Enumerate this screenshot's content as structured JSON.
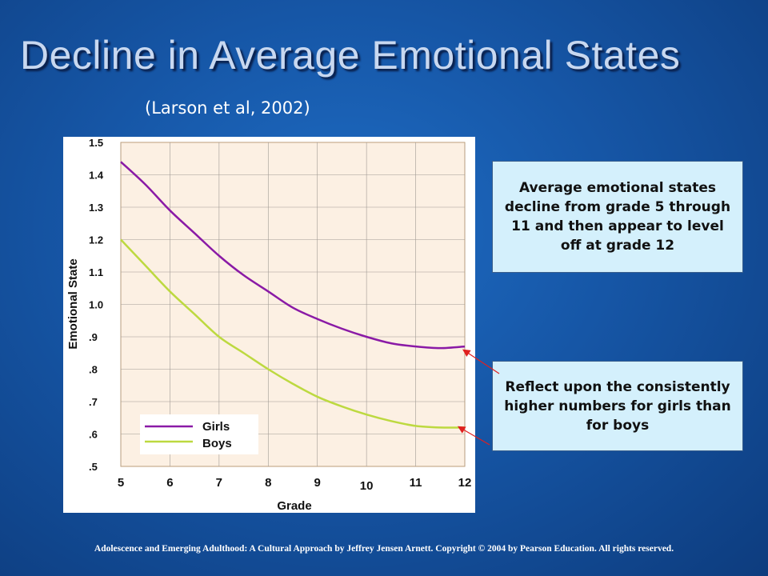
{
  "title": "Decline in Average Emotional States",
  "citation": "(Larson et al, 2002)",
  "callouts": [
    "Average emotional states decline from grade 5 through 11 and then appear to level off at grade 12",
    "Reflect upon the consistently higher numbers for girls than for boys"
  ],
  "footer": "Adolescence and Emerging Adulthood: A Cultural Approach by Jeffrey Jensen Arnett.  Copyright © 2004 by Pearson Education. All rights reserved.",
  "colors": {
    "girls": "#8a1aa6",
    "boys": "#bdd940",
    "plot_bg": "#fcf0e3",
    "grid": "#a09a94",
    "arrow": "#e02020"
  },
  "chart_data": {
    "type": "line",
    "xlabel": "Grade",
    "ylabel": "Emotional State",
    "xlim": [
      5,
      12
    ],
    "ylim": [
      0.5,
      1.5
    ],
    "x_ticks": [
      5,
      6,
      7,
      8,
      9,
      10,
      11,
      12
    ],
    "x_tick_labels": [
      "5",
      "6",
      "7",
      "8",
      "9",
      "10",
      "11",
      "12"
    ],
    "y_ticks": [
      0.5,
      0.6,
      0.7,
      0.8,
      0.9,
      1.0,
      1.1,
      1.2,
      1.3,
      1.4,
      1.5
    ],
    "y_tick_labels": [
      ".5",
      ".6",
      ".7",
      ".8",
      ".9",
      "1.0",
      "1.1",
      "1.2",
      "1.3",
      "1.4",
      "1.5"
    ],
    "grid": true,
    "legend": "bottom-left",
    "series": [
      {
        "name": "Girls",
        "x": [
          5,
          5.5,
          6,
          6.5,
          7,
          7.5,
          8,
          8.5,
          9,
          9.5,
          10,
          10.5,
          11,
          11.5,
          12
        ],
        "values": [
          1.44,
          1.37,
          1.29,
          1.22,
          1.15,
          1.09,
          1.04,
          0.99,
          0.955,
          0.925,
          0.9,
          0.88,
          0.87,
          0.865,
          0.87
        ]
      },
      {
        "name": "Boys",
        "x": [
          5,
          5.5,
          6,
          6.5,
          7,
          7.5,
          8,
          8.5,
          9,
          9.5,
          10,
          10.5,
          11,
          11.5,
          12
        ],
        "values": [
          1.2,
          1.12,
          1.04,
          0.97,
          0.9,
          0.85,
          0.8,
          0.755,
          0.715,
          0.685,
          0.66,
          0.64,
          0.625,
          0.62,
          0.62
        ]
      }
    ]
  }
}
